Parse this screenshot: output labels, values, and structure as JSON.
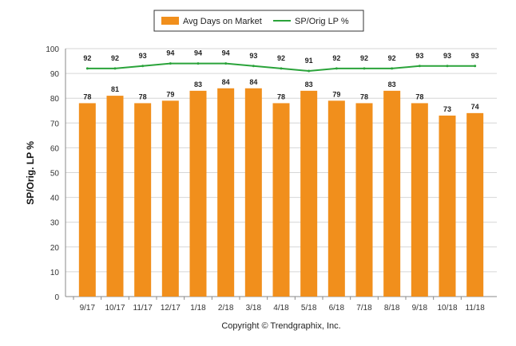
{
  "chart_data": {
    "type": "bar",
    "categories": [
      "9/17",
      "10/17",
      "11/17",
      "12/17",
      "1/18",
      "2/18",
      "3/18",
      "4/18",
      "5/18",
      "6/18",
      "7/18",
      "8/18",
      "9/18",
      "10/18",
      "11/18"
    ],
    "series": [
      {
        "name": "Avg Days on Market",
        "type": "bar",
        "color": "#f18f1c",
        "values": [
          78,
          81,
          78,
          79,
          83,
          84,
          84,
          78,
          83,
          79,
          78,
          83,
          78,
          73,
          74
        ]
      },
      {
        "name": "SP/Orig LP %",
        "type": "line",
        "color": "#2aa33a",
        "values": [
          92,
          92,
          93,
          94,
          94,
          94,
          93,
          92,
          91,
          92,
          92,
          92,
          93,
          93,
          93
        ]
      }
    ],
    "title": "",
    "xlabel": "",
    "ylabel": "SP/Orig. LP %",
    "ylim": [
      0,
      100
    ],
    "yticks": [
      0,
      10,
      20,
      30,
      40,
      50,
      60,
      70,
      80,
      90,
      100
    ],
    "grid": true,
    "legend_position": "top-center"
  },
  "footer": {
    "copyright": "Copyright © Trendgraphix, Inc."
  }
}
